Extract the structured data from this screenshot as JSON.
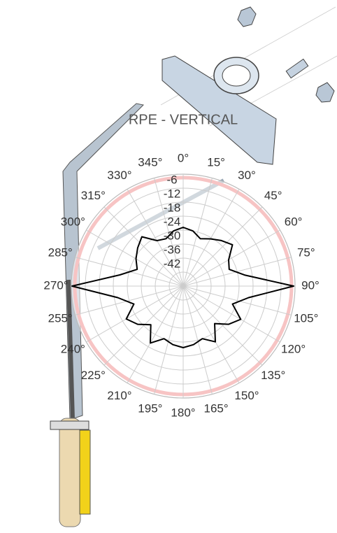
{
  "chart_data": {
    "type": "polar",
    "title": "RPE - VERTICAL",
    "theta": [
      0,
      10,
      20,
      30,
      40,
      50,
      60,
      70,
      80,
      90,
      100,
      110,
      120,
      130,
      140,
      150,
      160,
      170,
      180,
      190,
      200,
      210,
      220,
      230,
      240,
      250,
      260,
      270,
      280,
      290,
      300,
      310,
      320,
      330,
      340,
      350
    ],
    "series": [
      {
        "color": "#000000",
        "values": [
          -22.8,
          -24,
          -26.4,
          -24.6,
          -22.5,
          -20.4,
          -25.5,
          -27,
          -21,
          -0.6,
          -19.5,
          -25.5,
          -19.5,
          -22.5,
          -27,
          -20.4,
          -24,
          -22.5,
          -21.6,
          -22.5,
          -24,
          -19.8,
          -26.4,
          -22.5,
          -19.8,
          -25.5,
          -19.5,
          -0.3,
          -20.4,
          -27,
          -24.6,
          -22.5,
          -20.4,
          -25.5,
          -26.4,
          -24
        ]
      }
    ],
    "rlim": [
      -48,
      0
    ],
    "rticks": [
      -6,
      -12,
      -18,
      -24,
      -30,
      -36,
      -42
    ],
    "thetaticks": [
      {
        "value": 0,
        "label": "0°"
      },
      {
        "value": 15,
        "label": "15°"
      },
      {
        "value": 30,
        "label": "30°"
      },
      {
        "value": 45,
        "label": "45°"
      },
      {
        "value": 60,
        "label": "60°"
      },
      {
        "value": 75,
        "label": "75°"
      },
      {
        "value": 90,
        "label": "90°"
      },
      {
        "value": 105,
        "label": "105°"
      },
      {
        "value": 120,
        "label": "120°"
      },
      {
        "value": 135,
        "label": "135°"
      },
      {
        "value": 150,
        "label": "150°"
      },
      {
        "value": 165,
        "label": "165°"
      },
      {
        "value": 180,
        "label": "180°"
      },
      {
        "value": 195,
        "label": "195°"
      },
      {
        "value": 210,
        "label": "210°"
      },
      {
        "value": 225,
        "label": "225°"
      },
      {
        "value": 240,
        "label": "240°"
      },
      {
        "value": 255,
        "label": "255°"
      },
      {
        "value": 270,
        "label": "270°"
      },
      {
        "value": 285,
        "label": "285°"
      },
      {
        "value": 300,
        "label": "300°"
      },
      {
        "value": 315,
        "label": "315°"
      },
      {
        "value": 330,
        "label": "330°"
      },
      {
        "value": 345,
        "label": "345°"
      }
    ],
    "grid": true
  }
}
